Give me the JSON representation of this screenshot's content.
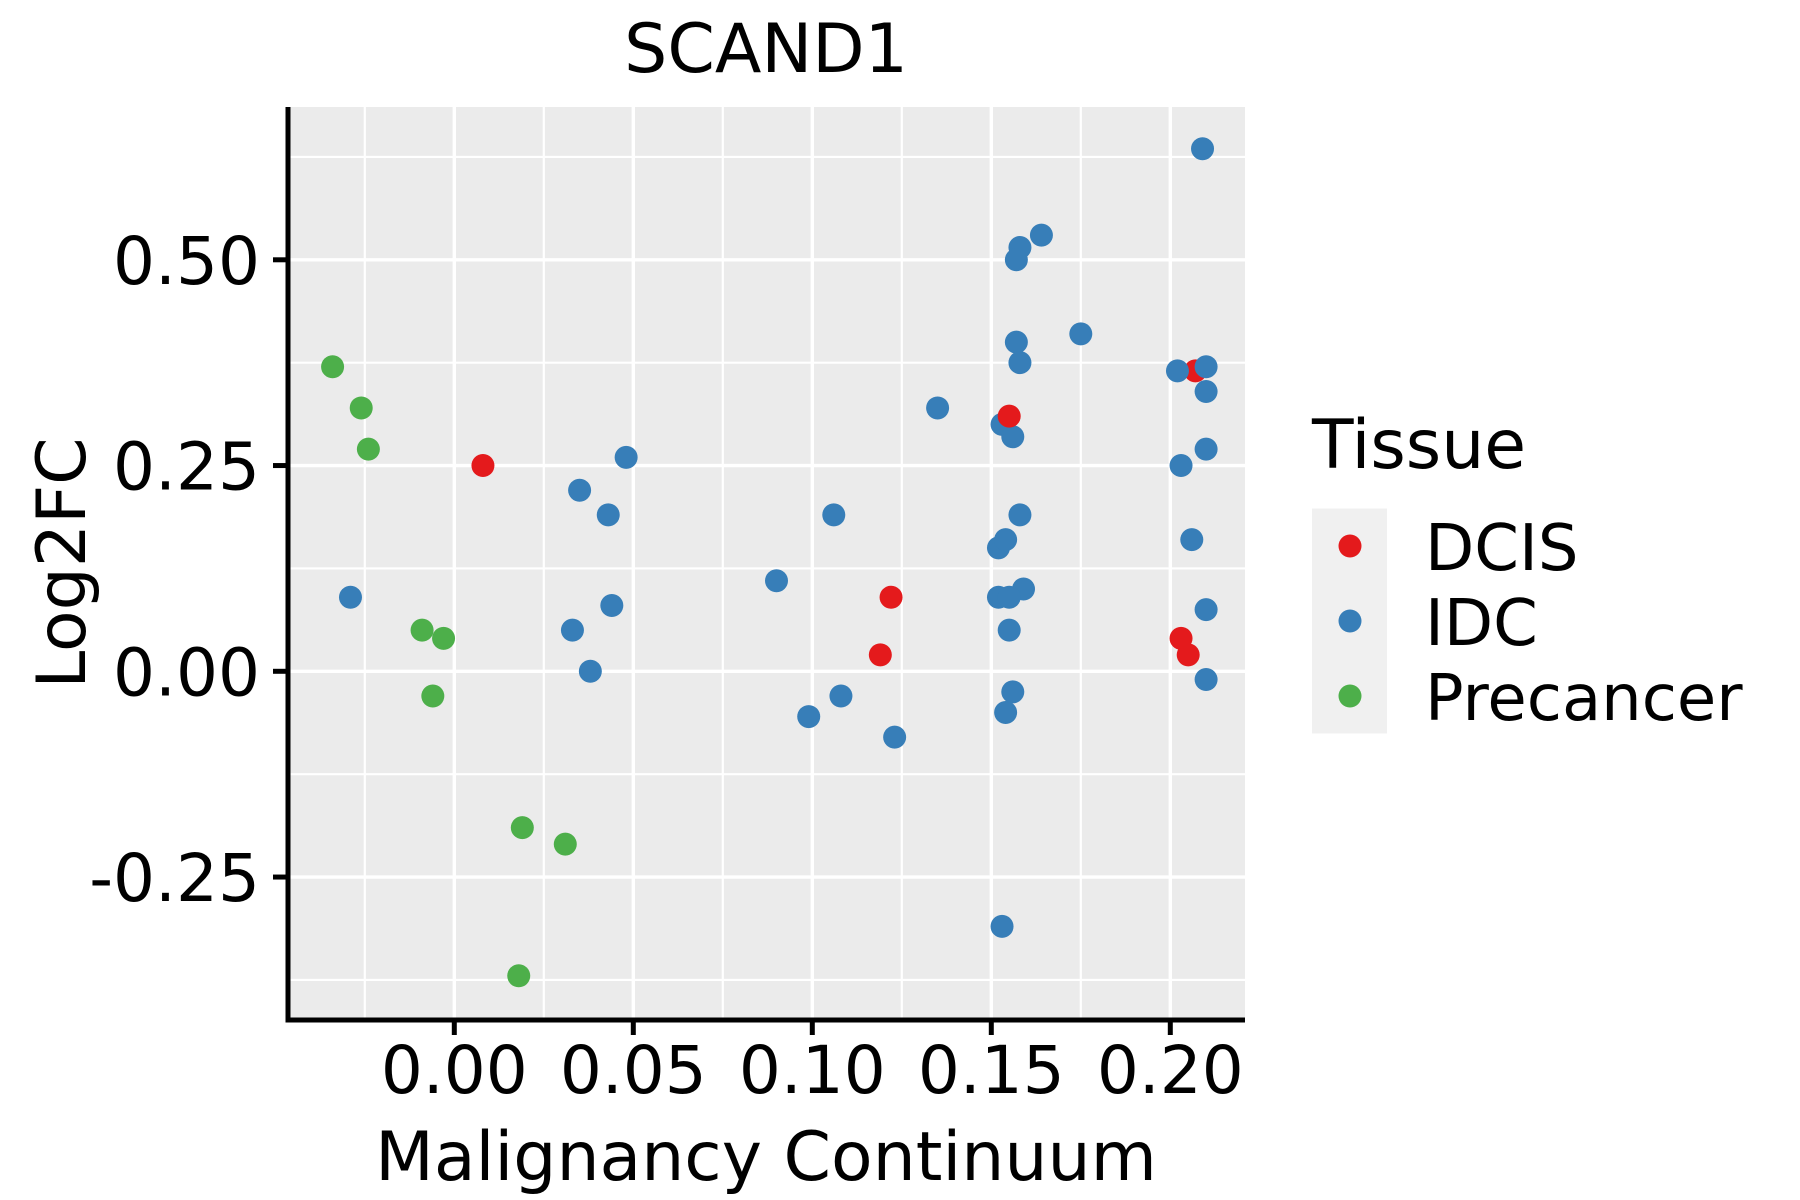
{
  "title": "SCAND1",
  "x_axis": {
    "title": "Malignancy Continuum",
    "ticks": [
      0.0,
      0.05,
      0.1,
      0.15,
      0.2
    ],
    "tick_labels": [
      "0.00",
      "0.05",
      "0.10",
      "0.15",
      "0.20"
    ],
    "minor_ticks": [
      -0.025,
      0.025,
      0.075,
      0.125,
      0.175
    ],
    "range": [
      -0.0464,
      0.2211
    ]
  },
  "y_axis": {
    "title": "Log2FC",
    "ticks": [
      -0.25,
      0.0,
      0.25,
      0.5
    ],
    "tick_labels": [
      "-0.25",
      "0.00",
      "0.25",
      "0.50"
    ],
    "minor_ticks": [
      -0.375,
      -0.125,
      0.125,
      0.375,
      0.625
    ],
    "range": [
      -0.424,
      0.684
    ]
  },
  "legend": {
    "title": "Tissue",
    "items": [
      {
        "label": "DCIS",
        "color": "#E41A1C"
      },
      {
        "label": "IDC",
        "color": "#377EB8"
      },
      {
        "label": "Precancer",
        "color": "#4DAF4A"
      }
    ]
  },
  "colors": {
    "panel_background": "#EBEBEB",
    "gridline": "#FFFFFF",
    "axis_line": "#000000",
    "legend_key_background": "#F0F0F0",
    "dcis": "#E41A1C",
    "idc": "#377EB8",
    "precancer": "#4DAF4A"
  },
  "chart_data": {
    "type": "scatter",
    "title": "SCAND1",
    "xlabel": "Malignancy Continuum",
    "ylabel": "Log2FC",
    "xlim": [
      -0.0464,
      0.2211
    ],
    "ylim": [
      -0.424,
      0.684
    ],
    "grid": true,
    "legend_position": "right",
    "series": [
      {
        "name": "IDC",
        "color": "#377EB8",
        "points": [
          [
            -0.029,
            0.09
          ],
          [
            0.035,
            0.22
          ],
          [
            0.033,
            0.05
          ],
          [
            0.038,
            0.0
          ],
          [
            0.048,
            0.26
          ],
          [
            0.043,
            0.19
          ],
          [
            0.044,
            0.08
          ],
          [
            0.106,
            0.19
          ],
          [
            0.09,
            0.11
          ],
          [
            0.099,
            -0.055
          ],
          [
            0.108,
            -0.03
          ],
          [
            0.123,
            -0.08
          ],
          [
            0.135,
            0.32
          ],
          [
            0.209,
            0.635
          ],
          [
            0.164,
            0.53
          ],
          [
            0.158,
            0.515
          ],
          [
            0.157,
            0.5
          ],
          [
            0.175,
            0.41
          ],
          [
            0.157,
            0.4
          ],
          [
            0.158,
            0.375
          ],
          [
            0.202,
            0.365
          ],
          [
            0.21,
            0.37
          ],
          [
            0.21,
            0.34
          ],
          [
            0.153,
            0.3
          ],
          [
            0.156,
            0.285
          ],
          [
            0.203,
            0.25
          ],
          [
            0.21,
            0.27
          ],
          [
            0.158,
            0.19
          ],
          [
            0.152,
            0.15
          ],
          [
            0.154,
            0.16
          ],
          [
            0.159,
            0.1
          ],
          [
            0.152,
            0.09
          ],
          [
            0.155,
            0.09
          ],
          [
            0.155,
            0.05
          ],
          [
            0.206,
            0.16
          ],
          [
            0.21,
            0.075
          ],
          [
            0.21,
            -0.01
          ],
          [
            0.156,
            -0.025
          ],
          [
            0.154,
            -0.05
          ],
          [
            0.153,
            -0.31
          ]
        ]
      },
      {
        "name": "DCIS",
        "color": "#E41A1C",
        "points_back": [
          [
            0.207,
            0.365
          ]
        ],
        "points": [
          [
            0.008,
            0.25
          ],
          [
            0.122,
            0.09
          ],
          [
            0.119,
            0.02
          ],
          [
            0.155,
            0.31
          ],
          [
            0.203,
            0.04
          ],
          [
            0.205,
            0.02
          ]
        ]
      },
      {
        "name": "Precancer",
        "color": "#4DAF4A",
        "points": [
          [
            -0.034,
            0.37
          ],
          [
            -0.026,
            0.32
          ],
          [
            -0.024,
            0.27
          ],
          [
            -0.009,
            0.05
          ],
          [
            -0.003,
            0.04
          ],
          [
            -0.006,
            -0.03
          ],
          [
            0.019,
            -0.19
          ],
          [
            0.031,
            -0.21
          ],
          [
            0.018,
            -0.37
          ]
        ]
      }
    ]
  }
}
